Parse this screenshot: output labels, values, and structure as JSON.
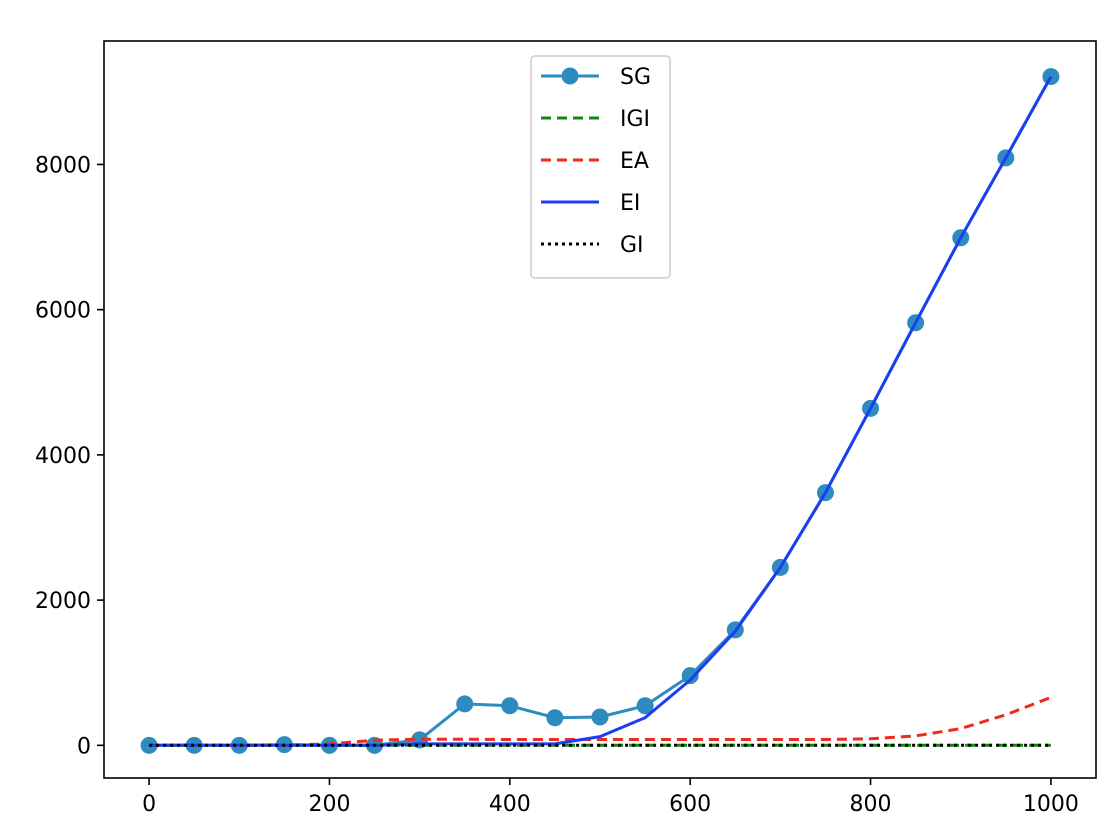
{
  "chart_data": {
    "type": "line",
    "title": "",
    "xlabel": "",
    "ylabel": "",
    "xlim": [
      -50,
      1050
    ],
    "ylim": [
      -450,
      9700
    ],
    "x_ticks": [
      0,
      200,
      400,
      600,
      800,
      1000
    ],
    "y_ticks": [
      0,
      2000,
      4000,
      6000,
      8000
    ],
    "x_tick_labels": [
      "0",
      "200",
      "400",
      "600",
      "800",
      "1000"
    ],
    "y_tick_labels": [
      "0",
      "2000",
      "4000",
      "6000",
      "8000"
    ],
    "grid": false,
    "legend_position": "top-center",
    "x": [
      0,
      50,
      100,
      150,
      200,
      250,
      300,
      350,
      400,
      450,
      500,
      550,
      600,
      650,
      700,
      750,
      800,
      850,
      900,
      950,
      1000
    ],
    "series": [
      {
        "name": "SG",
        "color": "#2e8bc0",
        "style": "solid",
        "marker": "circle",
        "values": [
          0,
          0,
          0,
          10,
          0,
          0,
          75,
          570,
          545,
          380,
          390,
          545,
          960,
          1590,
          2450,
          3480,
          4640,
          5820,
          6990,
          8090,
          9210
        ]
      },
      {
        "name": "IGI",
        "color": "#0f8a0f",
        "style": "dashed",
        "values": [
          0,
          0,
          0,
          0,
          0,
          0,
          0,
          0,
          0,
          0,
          0,
          0,
          0,
          0,
          0,
          0,
          0,
          0,
          0,
          0,
          0
        ]
      },
      {
        "name": "EA",
        "color": "#f02a1c",
        "style": "dashed",
        "values": [
          0,
          0,
          0,
          0,
          20,
          70,
          85,
          85,
          80,
          80,
          80,
          80,
          80,
          80,
          80,
          80,
          90,
          130,
          230,
          420,
          660
        ]
      },
      {
        "name": "EI",
        "color": "#1a3ff0",
        "style": "solid",
        "values": [
          0,
          0,
          0,
          0,
          0,
          0,
          20,
          20,
          20,
          20,
          120,
          380,
          900,
          1570,
          2450,
          3480,
          4640,
          5820,
          6990,
          8090,
          9210
        ]
      },
      {
        "name": "GI",
        "color": "#000000",
        "style": "dotted",
        "values": [
          0,
          0,
          0,
          0,
          0,
          0,
          0,
          0,
          0,
          0,
          0,
          0,
          0,
          0,
          0,
          0,
          0,
          0,
          0,
          0,
          0
        ]
      }
    ]
  }
}
